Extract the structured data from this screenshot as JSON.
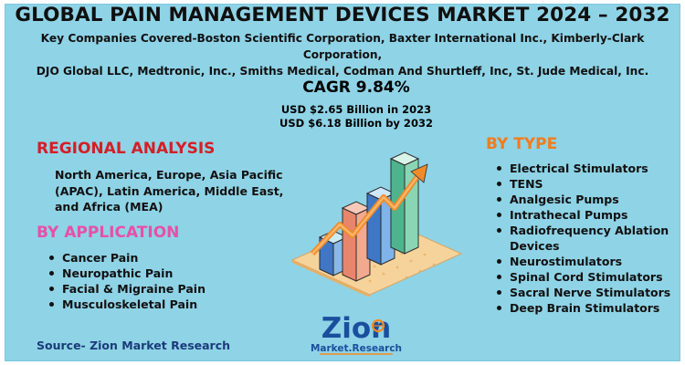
{
  "title": "GLOBAL PAIN MANAGEMENT DEVICES MARKET 2024 – 2032",
  "companies": {
    "line1": "Key Companies Covered-Boston Scientific Corporation, Baxter International Inc., Kimberly-Clark Corporation,",
    "line2": "DJO Global LLC, Medtronic, Inc., Smiths Medical, Codman And Shurtleff, Inc, St. Jude Medical, Inc."
  },
  "cagr": {
    "label": "CAGR 9.84%",
    "value_2023": "USD $2.65 Billion in 2023",
    "value_2032": "USD $6.18 Billion by 2032"
  },
  "regional": {
    "heading": "REGIONAL ANALYSIS",
    "text": "North America, Europe, Asia Pacific (APAC), Latin America, Middle East, and Africa (MEA)"
  },
  "application": {
    "heading": "BY APPLICATION",
    "items": [
      "Cancer Pain",
      "Neuropathic Pain",
      "Facial & Migraine Pain",
      "Musculoskeletal Pain"
    ]
  },
  "type": {
    "heading": "BY TYPE",
    "items": [
      "Electrical Stimulators",
      "TENS",
      "Analgesic Pumps",
      "Intrathecal Pumps",
      "Radiofrequency Ablation Devices",
      "Neurostimulators",
      "Spinal Cord Stimulators",
      "Sacral Nerve Stimulators",
      "Deep Brain Stimulators"
    ]
  },
  "source": "Source- Zion Market Research",
  "logo": {
    "word": "Zion",
    "sub": "Market.Research"
  },
  "colors": {
    "background": "#8fd3e6",
    "regional_heading": "#d31f26",
    "application_heading": "#e84fa8",
    "type_heading": "#f17c1f",
    "source": "#1b3a7a",
    "logo_blue": "#1a4f9e",
    "logo_orange": "#f58a1f"
  },
  "icons": [
    "bar-growth-illustration",
    "zion-logo"
  ]
}
